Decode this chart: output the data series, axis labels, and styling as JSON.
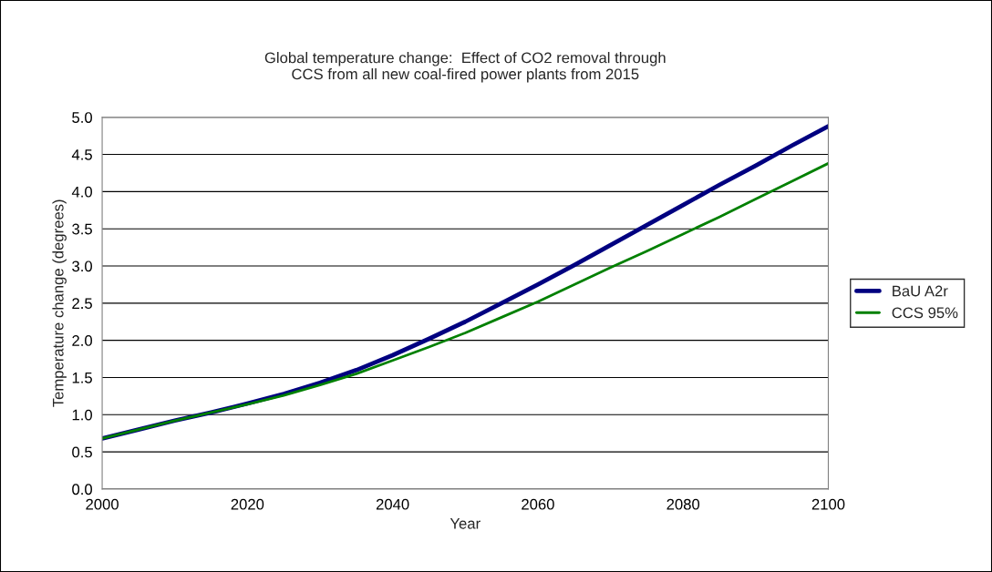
{
  "chart_data": {
    "type": "line",
    "title": "Global temperature change:  Effect of CO2 removal through\nCCS from all new coal-fired power plants from 2015",
    "xlabel": "Year",
    "ylabel": "Temperature change (degrees)",
    "x": [
      2000,
      2005,
      2010,
      2015,
      2020,
      2025,
      2030,
      2035,
      2040,
      2045,
      2050,
      2055,
      2060,
      2065,
      2070,
      2075,
      2080,
      2085,
      2090,
      2095,
      2100
    ],
    "series": [
      {
        "name": "BaU A2r",
        "color": "#000080",
        "values": [
          0.68,
          0.8,
          0.92,
          1.03,
          1.15,
          1.28,
          1.43,
          1.6,
          1.8,
          2.02,
          2.25,
          2.5,
          2.75,
          3.01,
          3.28,
          3.55,
          3.82,
          4.09,
          4.35,
          4.62,
          4.88
        ]
      },
      {
        "name": "CCS 95%",
        "color": "#008000",
        "values": [
          0.68,
          0.8,
          0.92,
          1.03,
          1.14,
          1.26,
          1.4,
          1.55,
          1.73,
          1.91,
          2.1,
          2.31,
          2.52,
          2.75,
          2.98,
          3.2,
          3.43,
          3.66,
          3.9,
          4.14,
          4.38
        ]
      }
    ],
    "xlim": [
      2000,
      2100
    ],
    "xticks": [
      2000,
      2020,
      2040,
      2060,
      2080,
      2100
    ],
    "ylim": [
      0,
      5
    ],
    "yticks": [
      {
        "value": 0,
        "label": "0.0"
      },
      {
        "value": 0.5,
        "label": "0.5"
      },
      {
        "value": 1,
        "label": "1.0"
      },
      {
        "value": 1.5,
        "label": "1.5"
      },
      {
        "value": 2,
        "label": "2.0"
      },
      {
        "value": 2.5,
        "label": "2.5"
      },
      {
        "value": 3,
        "label": "3.0"
      },
      {
        "value": 3.5,
        "label": "3.5"
      },
      {
        "value": 4,
        "label": "4.0"
      },
      {
        "value": 4.5,
        "label": "4.5"
      },
      {
        "value": 5,
        "label": "5.0"
      }
    ],
    "grid": "y",
    "legend": "right",
    "marker": "none",
    "line_style": "solid"
  }
}
